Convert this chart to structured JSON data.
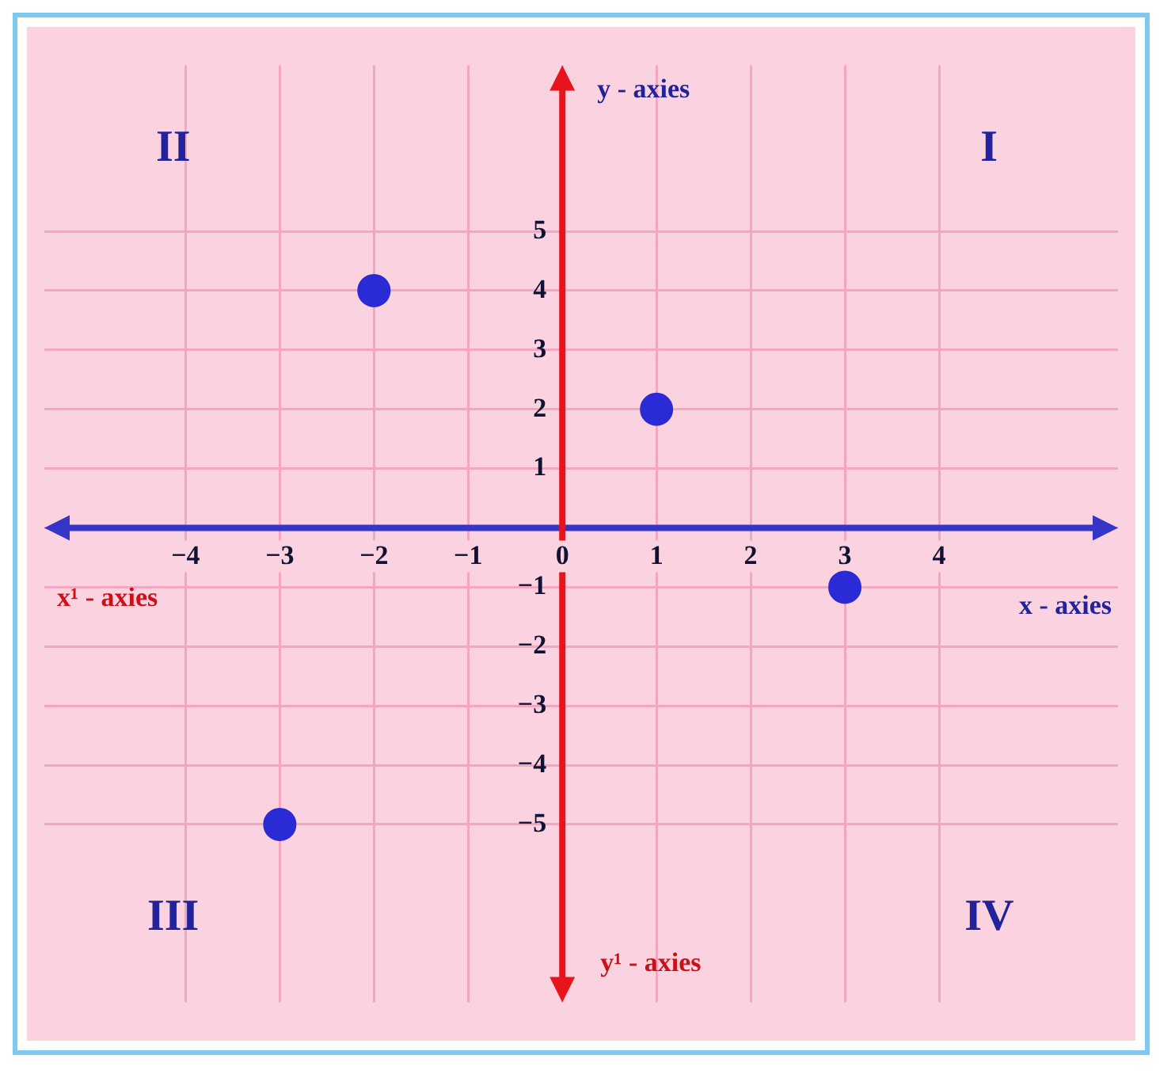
{
  "chart_data": {
    "type": "scatter",
    "xlabel": "x - axies",
    "ylabel": "y - axies",
    "annotations": [
      "II",
      "I",
      "III",
      "IV",
      "x¹ - axies",
      "y¹ - axies"
    ],
    "series": [
      {
        "color": "#2b2bd6",
        "x": [
          -2,
          1,
          3,
          -3
        ],
        "values": [
          4,
          2,
          -1,
          -5
        ]
      }
    ],
    "xlim": [
      -5.5,
      5.9
    ],
    "ylim": [
      -8,
      7.8
    ],
    "xticks": [
      -4,
      -3,
      -2,
      -1,
      0,
      1,
      2,
      3,
      4
    ],
    "yticks": [
      -5,
      -4,
      -3,
      -2,
      -1,
      {
        "value": 0,
        "label": null
      },
      1,
      2,
      3,
      4,
      5
    ],
    "grid": true,
    "marker": "circle",
    "legend": false
  }
}
